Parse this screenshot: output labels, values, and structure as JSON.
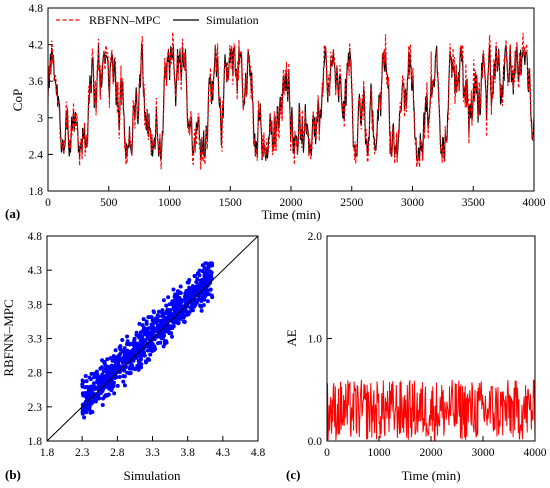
{
  "chart_data": [
    {
      "panel": "(a)",
      "type": "line",
      "xlabel": "Time (min)",
      "ylabel": "CoP",
      "xlim": [
        0,
        4000
      ],
      "ylim": [
        1.8,
        4.8
      ],
      "xticks": [
        0,
        500,
        1000,
        1500,
        2000,
        2500,
        3000,
        3500,
        4000
      ],
      "yticks": [
        1.8,
        2.4,
        3.0,
        3.6,
        4.2,
        4.8
      ],
      "ytick_labels": [
        "1.8",
        "2.4",
        "3",
        "3.6",
        "4.2",
        "4.8"
      ],
      "legend_position": "top-left",
      "grid": false,
      "series": [
        {
          "name": "RBFNN–MPC",
          "style": "dashed",
          "color": "#ff0000",
          "values_range": [
            2.05,
            4.45
          ]
        },
        {
          "name": "Simulation",
          "style": "solid",
          "color": "#000000",
          "values_range": [
            2.3,
            4.2
          ]
        }
      ]
    },
    {
      "panel": "(b)",
      "type": "scatter",
      "xlabel": "Simulation",
      "ylabel": "RBFNN–MPC",
      "xlim": [
        1.8,
        4.8
      ],
      "ylim": [
        1.8,
        4.8
      ],
      "xticks": [
        1.8,
        2.3,
        2.8,
        3.3,
        3.8,
        4.3,
        4.8
      ],
      "yticks": [
        1.8,
        2.3,
        2.8,
        3.3,
        3.8,
        4.3,
        4.8
      ],
      "grid": false,
      "reference_line": "y = x",
      "series": [
        {
          "color": "#0000ff",
          "x_range": [
            2.3,
            4.15
          ],
          "y_range": [
            2.05,
            4.4
          ]
        }
      ]
    },
    {
      "panel": "(c)",
      "type": "line",
      "xlabel": "Time (min)",
      "ylabel": "AE",
      "xlim": [
        0,
        4000
      ],
      "ylim": [
        0.0,
        2.0
      ],
      "xticks": [
        0,
        1000,
        2000,
        3000,
        4000
      ],
      "yticks": [
        0.0,
        1.0,
        2.0
      ],
      "grid": false,
      "series": [
        {
          "color": "#ff0000",
          "values_range": [
            0.0,
            0.6
          ]
        }
      ]
    }
  ],
  "style": {
    "dashed_color": "#ff0000",
    "solid_color": "#000000",
    "scatter_color": "#0000ff",
    "ae_color": "#ff0000"
  }
}
